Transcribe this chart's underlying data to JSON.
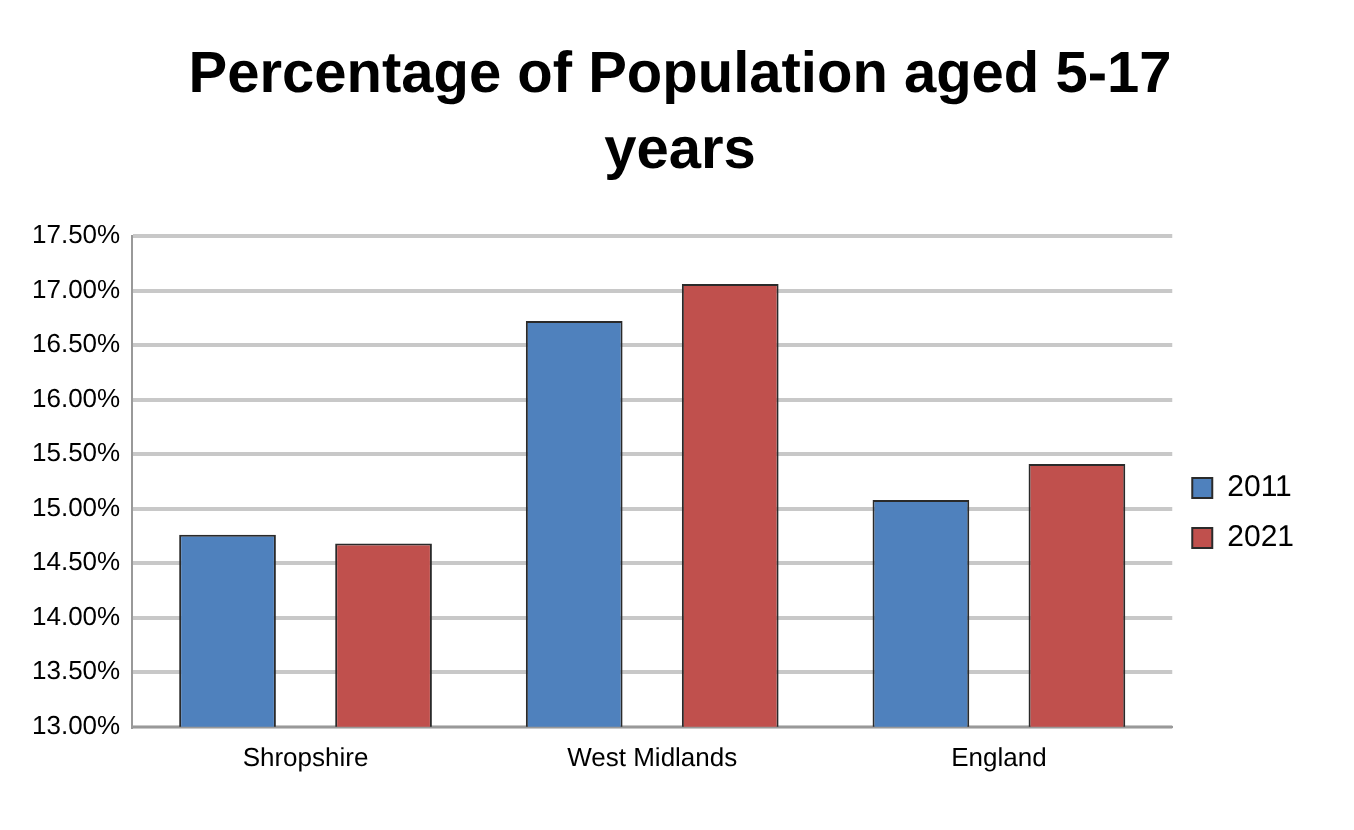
{
  "chart_data": {
    "type": "bar",
    "title": "Percentage of Population aged 5-17 years",
    "categories": [
      "Shropshire",
      "West Midlands",
      "England"
    ],
    "series": [
      {
        "name": "2011",
        "color": "#4f81bd",
        "values": [
          14.76,
          16.72,
          15.08
        ]
      },
      {
        "name": "2021",
        "color": "#c0504d",
        "values": [
          14.68,
          17.06,
          15.41
        ]
      }
    ],
    "ylim": [
      13,
      17.5
    ],
    "yticks": [
      {
        "value": 13,
        "label": "13.00%"
      },
      {
        "value": 13.5,
        "label": "13.50%"
      },
      {
        "value": 14,
        "label": "14.00%"
      },
      {
        "value": 14.5,
        "label": "14.50%"
      },
      {
        "value": 15,
        "label": "15.00%"
      },
      {
        "value": 15.5,
        "label": "15.50%"
      },
      {
        "value": 16,
        "label": "16.00%"
      },
      {
        "value": 16.5,
        "label": "16.50%"
      },
      {
        "value": 17,
        "label": "17.00%"
      },
      {
        "value": 17.5,
        "label": "17.50%"
      }
    ],
    "grid": "y",
    "legend": "right"
  }
}
